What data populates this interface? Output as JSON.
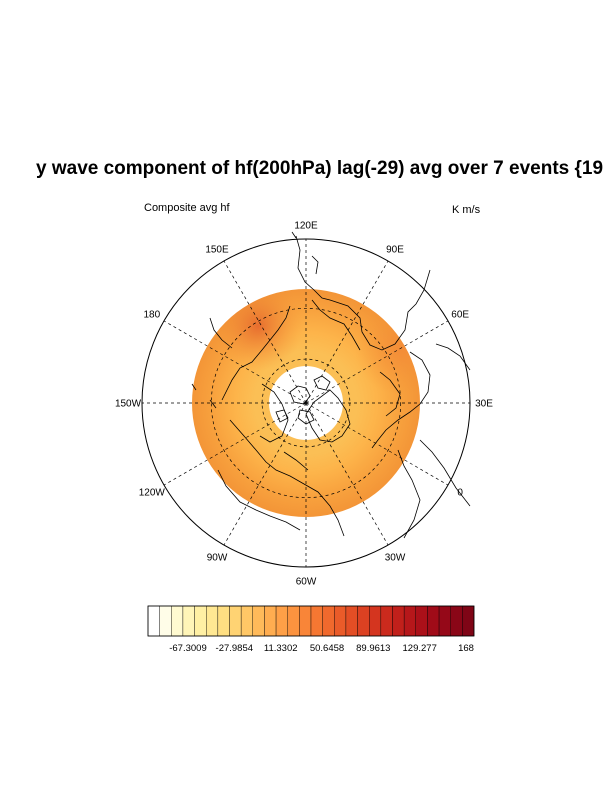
{
  "title": "y wave component of hf(200hPa) lag(-29) avg over 7 events {19",
  "subtitle_left": "Composite avg hf",
  "subtitle_right": "K m/s",
  "longitude_labels": [
    {
      "text": "120E",
      "lon": 120
    },
    {
      "text": "90E",
      "lon": 90
    },
    {
      "text": "60E",
      "lon": 60
    },
    {
      "text": "30E",
      "lon": 30
    },
    {
      "text": "0",
      "lon": 0
    },
    {
      "text": "30W",
      "lon": -30
    },
    {
      "text": "60W",
      "lon": -60
    },
    {
      "text": "90W",
      "lon": -90
    },
    {
      "text": "120W",
      "lon": -120
    },
    {
      "text": "150W",
      "lon": -150
    },
    {
      "text": "180",
      "lon": 180
    },
    {
      "text": "150E",
      "lon": 150
    }
  ],
  "colorbar": {
    "tick_labels": [
      "-67.3009",
      "-27.9854",
      "11.3302",
      "50.6458",
      "89.9613",
      "129.277",
      "168"
    ],
    "colors": [
      "#ffffff",
      "#fffde8",
      "#fffad0",
      "#fff5b8",
      "#fff0a4",
      "#ffe893",
      "#ffdf82",
      "#ffd373",
      "#ffc766",
      "#ffba5a",
      "#ffad50",
      "#ffa047",
      "#fc933f",
      "#f98538",
      "#f57732",
      "#f0692d",
      "#ea5b29",
      "#e34e25",
      "#dc4122",
      "#d4351f",
      "#cb2a1d",
      "#c1201b",
      "#b6171a",
      "#ab1019",
      "#a00b18",
      "#950818",
      "#8a0617",
      "#7f0516"
    ]
  },
  "map_data": {
    "projection": "north-polar-stereographic",
    "center_latitude": 90,
    "map_edge_latitude": 0,
    "latitude_circles": [
      30,
      60
    ],
    "longitude_spacing": 30,
    "field_latitude_range": [
      30,
      70
    ],
    "field_typical_level": "orange"
  }
}
